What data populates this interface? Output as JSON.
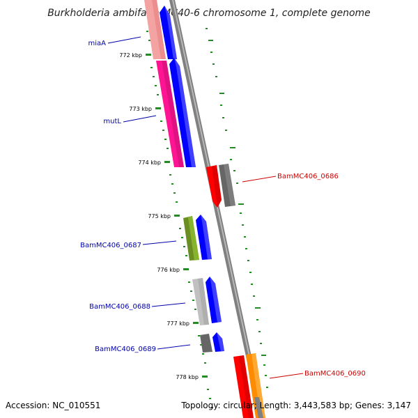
{
  "title": "Burkholderia ambifaria MC40-6 chromosome 1, complete genome",
  "footer": {
    "accession": "Accession: NC_010551",
    "summary": "Topology: circular; Length: 3,443,583 bp; Genes: 3,147"
  },
  "ticks": [
    "772 kbp",
    "773 kbp",
    "774 kbp",
    "775 kbp",
    "776 kbp",
    "777 kbp",
    "778 kbp"
  ],
  "labels": {
    "miaA": "miaA",
    "mutL": "mutL",
    "bam0686": "BamMC406_0686",
    "bam0687": "BamMC406_0687",
    "bam0688": "BamMC406_0688",
    "bam0689": "BamMC406_0689",
    "bam0690": "BamMC406_0690"
  },
  "colors": {
    "backbone": "#808080",
    "blue": "#0000ff",
    "pink": "#ff1493",
    "pink_light": "#f08a8a",
    "red": "#ff0000",
    "gray_dark": "#666666",
    "gray_light": "#c0c0c0",
    "olive": "#6b8e23",
    "orange": "#ff8c00",
    "tick_green": "#228b22",
    "label_blue": "#0000aa",
    "label_red": "#cc0000"
  }
}
